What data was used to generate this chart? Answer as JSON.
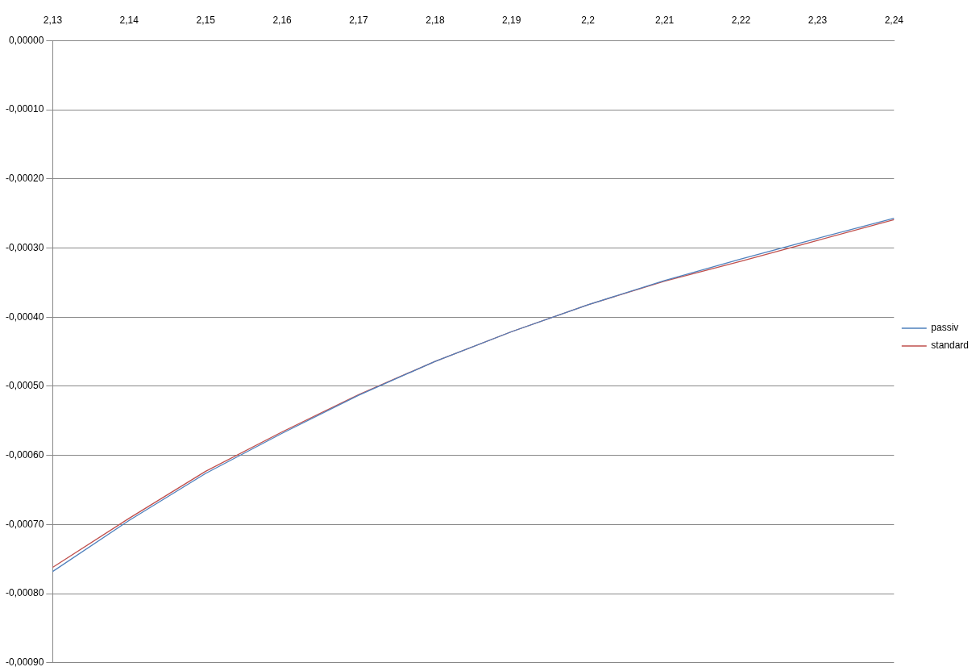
{
  "chart_data": {
    "type": "line",
    "categories": [
      "2,13",
      "2,14",
      "2,15",
      "2,16",
      "2,17",
      "2,18",
      "2,19",
      "2,2",
      "2,21",
      "2,22",
      "2,23",
      "2,24"
    ],
    "series": [
      {
        "name": "passiv",
        "color": "#4f81bd",
        "values": [
          -0.000768,
          -0.000694,
          -0.000626,
          -0.000568,
          -0.000513,
          -0.000464,
          -0.000421,
          -0.000382,
          -0.000347,
          -0.000316,
          -0.000286,
          -0.000257
        ]
      },
      {
        "name": "standard",
        "color": "#c0504d",
        "values": [
          -0.000762,
          -0.000691,
          -0.000623,
          -0.000566,
          -0.000512,
          -0.000464,
          -0.000421,
          -0.000382,
          -0.000348,
          -0.000319,
          -0.000289,
          -0.000259
        ]
      }
    ],
    "ylim": [
      -0.0009,
      0
    ],
    "yticks": [
      {
        "value": 0,
        "label": "0,00000"
      },
      {
        "value": -0.0001,
        "label": "-0,00010"
      },
      {
        "value": -0.0002,
        "label": "-0,00020"
      },
      {
        "value": -0.0003,
        "label": "-0,00030"
      },
      {
        "value": -0.0004,
        "label": "-0,00040"
      },
      {
        "value": -0.0005,
        "label": "-0,00050"
      },
      {
        "value": -0.0006,
        "label": "-0,00060"
      },
      {
        "value": -0.0007,
        "label": "-0,00070"
      },
      {
        "value": -0.0008,
        "label": "-0,00080"
      },
      {
        "value": -0.0009,
        "label": "-0,00090"
      }
    ],
    "grid": "y",
    "legend": "right",
    "marker": "none",
    "line_style": "solid"
  }
}
